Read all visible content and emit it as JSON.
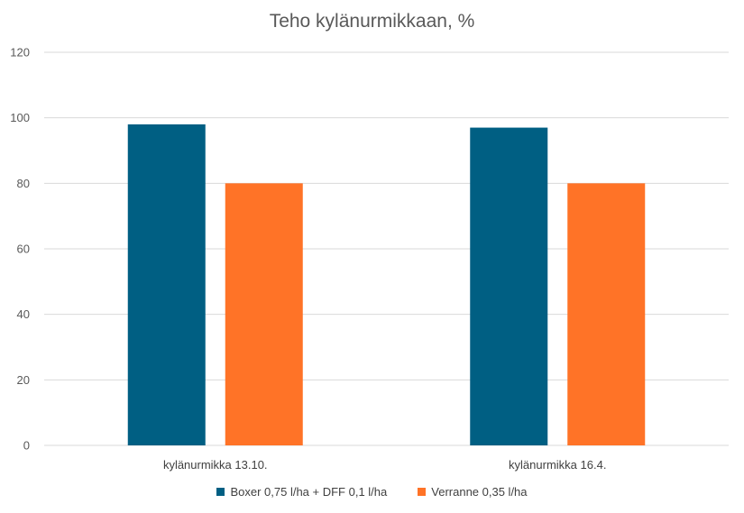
{
  "chart_data": {
    "type": "bar",
    "title": "Teho kylänurmikkaan, %",
    "categories": [
      "kylänurmikka 13.10.",
      "kylänurmikka 16.4."
    ],
    "series": [
      {
        "name": "Boxer 0,75 l/ha + DFF 0,1 l/ha",
        "values": [
          98,
          97
        ],
        "color": "#005f83"
      },
      {
        "name": "Verranne 0,35 l/ha",
        "values": [
          80,
          80
        ],
        "color": "#ff7327"
      }
    ],
    "ylim": [
      0,
      120
    ],
    "yticks": [
      0,
      20,
      40,
      60,
      80,
      100,
      120
    ],
    "grid": true,
    "legend": "bottom"
  }
}
